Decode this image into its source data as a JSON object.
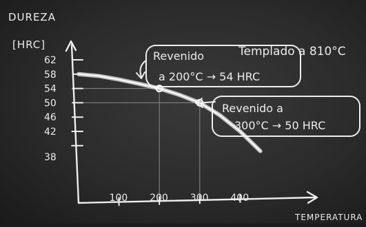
{
  "chart_data": {
    "type": "line",
    "title": "",
    "ylabel_line1": "DUREZA",
    "ylabel_line2": "[HRC]",
    "xlabel": "TEMPERATURA",
    "x_ticks": [
      100,
      200,
      300,
      400
    ],
    "x_tick_labels": [
      "100",
      "200",
      "300",
      "400"
    ],
    "y_ticks": [
      62,
      58,
      54,
      50,
      46,
      42,
      38
    ],
    "y_tick_labels": [
      "62",
      "58",
      "54",
      "50",
      "46",
      "42",
      "38"
    ],
    "series": [
      {
        "x": [
          0,
          50,
          100,
          150,
          200,
          250,
          300,
          350,
          400,
          450
        ],
        "y": [
          58,
          57.5,
          56.5,
          55.3,
          54,
          52.2,
          50,
          46.5,
          42,
          36.5
        ]
      }
    ],
    "highlighted_points": [
      {
        "x": 200,
        "y": 54
      },
      {
        "x": 300,
        "y": 50
      }
    ],
    "annotations": {
      "note_top_right": "Templado a 810°C",
      "callout_1_line1": "Revenido",
      "callout_1_line2": "a 200°C → 54 HRC",
      "callout_2_line1": "Revenido a",
      "callout_2_line2": "300°C → 50 HRC"
    },
    "grid": "guide lines at highlighted points"
  }
}
